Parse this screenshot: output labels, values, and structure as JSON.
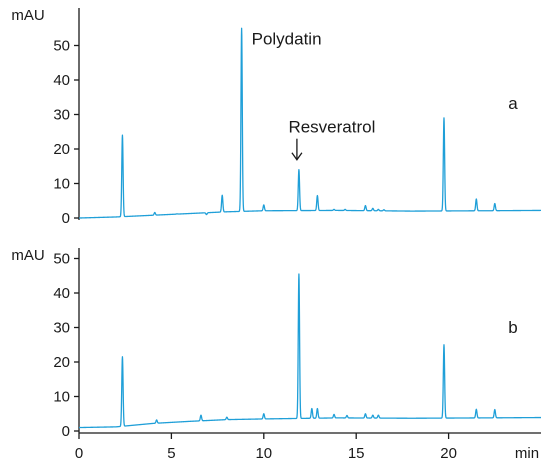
{
  "chart_data": [
    {
      "type": "line",
      "panel_label": "a",
      "ylabel": "mAU",
      "xlabel": "min",
      "xlim": [
        0,
        25
      ],
      "ylim": [
        0,
        57
      ],
      "yticks": [
        0,
        10,
        20,
        30,
        40,
        50
      ],
      "color": "#1f9fd8",
      "baseline": [
        [
          0,
          0
        ],
        [
          2,
          0.3
        ],
        [
          4,
          0.8
        ],
        [
          6,
          1.3
        ],
        [
          8,
          1.8
        ],
        [
          10,
          2.1
        ],
        [
          14,
          2.2
        ],
        [
          18,
          2.0
        ],
        [
          22,
          2.1
        ],
        [
          25,
          2.2
        ]
      ],
      "peaks": [
        {
          "rt": 2.35,
          "height": 24
        },
        {
          "rt": 4.1,
          "height": 1.6
        },
        {
          "rt": 5.3,
          "height": 1.2
        },
        {
          "rt": 6.9,
          "height": 1.0
        },
        {
          "rt": 7.75,
          "height": 6.6
        },
        {
          "rt": 8.8,
          "height": 55
        },
        {
          "rt": 10.0,
          "height": 3.8
        },
        {
          "rt": 11.9,
          "height": 14
        },
        {
          "rt": 12.9,
          "height": 6.5
        },
        {
          "rt": 13.8,
          "height": 2.5
        },
        {
          "rt": 14.4,
          "height": 2.5
        },
        {
          "rt": 15.5,
          "height": 3.6
        },
        {
          "rt": 15.9,
          "height": 2.8
        },
        {
          "rt": 16.2,
          "height": 2.5
        },
        {
          "rt": 16.5,
          "height": 2.4
        },
        {
          "rt": 19.75,
          "height": 29
        },
        {
          "rt": 21.5,
          "height": 5.5
        },
        {
          "rt": 22.5,
          "height": 4.2
        }
      ],
      "annotations": [
        {
          "text": "Polydatin",
          "x": 8.8,
          "y": 55
        },
        {
          "text": "Resveratrol",
          "x": 11.9,
          "y": 14
        }
      ]
    },
    {
      "type": "line",
      "panel_label": "b",
      "ylabel": "mAU",
      "xlabel": "min",
      "xlim": [
        0,
        25
      ],
      "ylim": [
        0,
        57
      ],
      "xticks": [
        0,
        5,
        10,
        15,
        20
      ],
      "yticks": [
        0,
        10,
        20,
        30,
        40,
        50
      ],
      "color": "#1f9fd8",
      "baseline": [
        [
          0,
          1.0
        ],
        [
          2,
          1.2
        ],
        [
          4,
          2.2
        ],
        [
          6,
          2.8
        ],
        [
          8,
          3.3
        ],
        [
          10,
          3.5
        ],
        [
          14,
          3.8
        ],
        [
          18,
          3.7
        ],
        [
          22,
          3.8
        ],
        [
          25,
          3.9
        ]
      ],
      "peaks": [
        {
          "rt": 2.35,
          "height": 21.5
        },
        {
          "rt": 4.2,
          "height": 3.2
        },
        {
          "rt": 6.6,
          "height": 4.6
        },
        {
          "rt": 8.0,
          "height": 4.0
        },
        {
          "rt": 10.0,
          "height": 5.0
        },
        {
          "rt": 11.9,
          "height": 45.5
        },
        {
          "rt": 12.6,
          "height": 6.5
        },
        {
          "rt": 12.9,
          "height": 6.5
        },
        {
          "rt": 13.8,
          "height": 4.8
        },
        {
          "rt": 14.5,
          "height": 4.5
        },
        {
          "rt": 15.5,
          "height": 5.0
        },
        {
          "rt": 15.9,
          "height": 4.6
        },
        {
          "rt": 16.2,
          "height": 4.6
        },
        {
          "rt": 19.75,
          "height": 25
        },
        {
          "rt": 21.5,
          "height": 6.3
        },
        {
          "rt": 22.5,
          "height": 6.2
        }
      ]
    }
  ]
}
